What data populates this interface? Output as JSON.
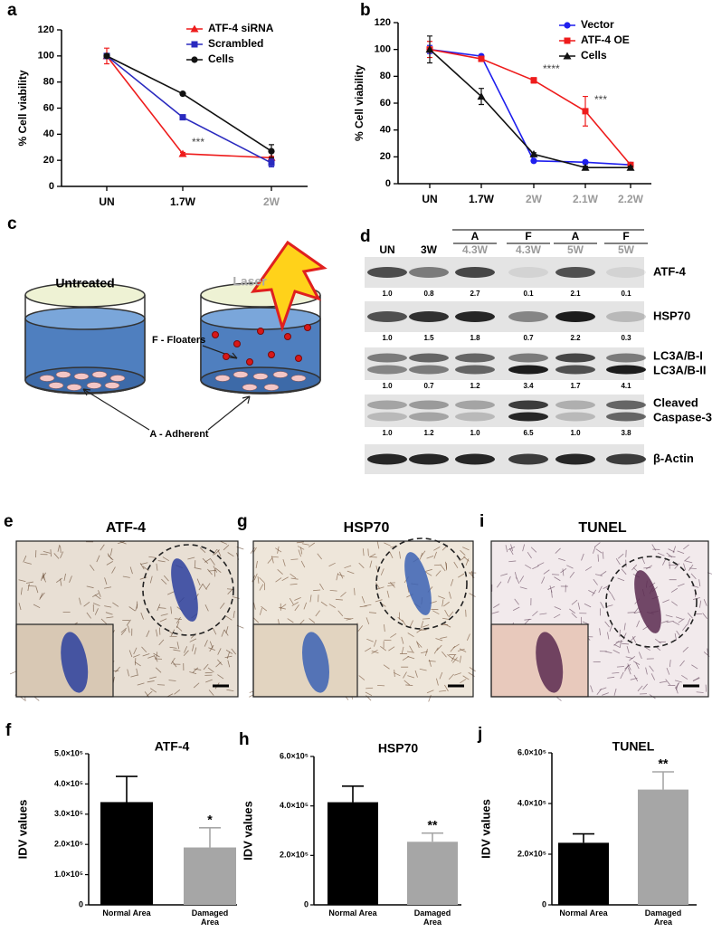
{
  "panel_labels": [
    "a",
    "b",
    "c",
    "d",
    "e",
    "g",
    "i",
    "f",
    "h",
    "j"
  ],
  "chart_data": [
    {
      "type": "line",
      "ylabel": "% Cell viability",
      "categories": [
        "UN",
        "1.7W",
        "2W"
      ],
      "category_colors": [
        "#000000",
        "#000000",
        "#9a9a9a"
      ],
      "ylim": [
        0,
        120
      ],
      "yticks": [
        0,
        20,
        40,
        60,
        80,
        100,
        120
      ],
      "legend": "upper right",
      "series": [
        {
          "name": "ATF-4 siRNA",
          "color": "#ee1c1c",
          "marker": "triangle",
          "values": [
            100,
            25,
            22
          ],
          "errors": [
            6,
            1,
            1
          ],
          "annotations": [
            null,
            "***",
            null
          ]
        },
        {
          "name": "Scrambled",
          "color": "#2a2abf",
          "marker": "square",
          "values": [
            100,
            53,
            18
          ],
          "errors": [
            1,
            1,
            3
          ]
        },
        {
          "name": "Cells",
          "color": "#111111",
          "marker": "circle",
          "values": [
            100,
            71,
            27
          ],
          "errors": [
            1,
            1,
            5
          ]
        }
      ]
    },
    {
      "type": "line",
      "ylabel": "% Cell viability",
      "categories": [
        "UN",
        "1.7W",
        "2W",
        "2.1W",
        "2.2W"
      ],
      "category_colors": [
        "#000000",
        "#000000",
        "#9a9a9a",
        "#9a9a9a",
        "#9a9a9a"
      ],
      "ylim": [
        0,
        120
      ],
      "yticks": [
        0,
        20,
        40,
        60,
        80,
        100,
        120
      ],
      "legend": "upper right",
      "series": [
        {
          "name": "Vector",
          "color": "#1f1fee",
          "marker": "circle",
          "values": [
            100,
            95,
            17,
            16,
            14
          ],
          "errors": [
            3,
            1,
            1,
            1,
            1
          ]
        },
        {
          "name": "ATF-4 OE",
          "color": "#ee1c1c",
          "marker": "square",
          "values": [
            100,
            93,
            77,
            54,
            14
          ],
          "errors": [
            6,
            1,
            2,
            11,
            1
          ],
          "annotations": [
            null,
            null,
            "****",
            "***",
            null
          ]
        },
        {
          "name": "Cells",
          "color": "#111111",
          "marker": "triangle",
          "values": [
            100,
            65,
            22,
            12,
            12
          ],
          "errors": [
            10,
            6,
            1,
            1,
            1
          ]
        }
      ]
    },
    {
      "type": "bar",
      "title": "ATF-4",
      "ylabel": "IDV values",
      "categories": [
        "Normal Area",
        "Damaged Area"
      ],
      "colors": [
        "#000000",
        "#a6a6a6"
      ],
      "values": [
        340000,
        190000
      ],
      "errors": [
        85000,
        65000
      ],
      "value_annotations": [
        null,
        "*"
      ],
      "ylim": [
        0,
        500000
      ],
      "yticks": [
        0,
        {
          "value": 100000,
          "label": "1.0×10⁵"
        },
        {
          "value": 200000,
          "label": "2.0×10⁵"
        },
        {
          "value": 300000,
          "label": "3.0×10⁵"
        },
        {
          "value": 400000,
          "label": "4.0×10⁵"
        },
        {
          "value": 500000,
          "label": "5.0×10⁵"
        }
      ]
    },
    {
      "type": "bar",
      "title": "HSP70",
      "ylabel": "IDV values",
      "categories": [
        "Normal Area",
        "Damaged Area"
      ],
      "colors": [
        "#000000",
        "#a6a6a6"
      ],
      "values": [
        415000,
        255000
      ],
      "errors": [
        65000,
        35000
      ],
      "value_annotations": [
        null,
        "**"
      ],
      "ylim": [
        0,
        600000
      ],
      "yticks": [
        0,
        {
          "value": 200000,
          "label": "2.0×10⁵"
        },
        {
          "value": 400000,
          "label": "4.0×10⁵"
        },
        {
          "value": 600000,
          "label": "6.0×10⁵"
        }
      ]
    },
    {
      "type": "bar",
      "title": "TUNEL",
      "ylabel": "IDV values",
      "categories": [
        "Normal Area",
        "Damaged Area"
      ],
      "colors": [
        "#000000",
        "#a6a6a6"
      ],
      "values": [
        245000,
        455000
      ],
      "errors": [
        35000,
        70000
      ],
      "value_annotations": [
        null,
        "**"
      ],
      "ylim": [
        0,
        600000
      ],
      "yticks": [
        0,
        {
          "value": 200000,
          "label": "2.0×10⁵"
        },
        {
          "value": 400000,
          "label": "4.0×10⁵"
        },
        {
          "value": 600000,
          "label": "6.0×10⁵"
        }
      ]
    }
  ],
  "diagram": {
    "left_title": "Untreated",
    "right_title": "Laser",
    "floaters": "F - Floaters",
    "adherent": "A - Adherent"
  },
  "blot": {
    "lanes": [
      {
        "label": "UN"
      },
      {
        "label": "3W"
      },
      {
        "group": "A",
        "label": "4.3W"
      },
      {
        "group": "F",
        "label": "4.3W"
      },
      {
        "group": "A",
        "label": "5W"
      },
      {
        "group": "F",
        "label": "5W"
      }
    ],
    "rows": [
      {
        "labels": [
          "ATF-4"
        ],
        "quantification": [
          "1.0",
          "0.8",
          "2.7",
          "0.1",
          "2.1",
          "0.1"
        ]
      },
      {
        "labels": [
          "HSP70"
        ],
        "quantification": [
          "1.0",
          "1.5",
          "1.8",
          "0.7",
          "2.2",
          "0.3"
        ]
      },
      {
        "labels": [
          "LC3A/B-I",
          "LC3A/B-II"
        ],
        "quantification": [
          "1.0",
          "0.7",
          "1.2",
          "3.4",
          "1.7",
          "4.1"
        ]
      },
      {
        "labels": [
          "Cleaved",
          "Caspase-3"
        ],
        "quantification": [
          "1.0",
          "1.2",
          "1.0",
          "6.5",
          "1.0",
          "3.8"
        ]
      },
      {
        "labels": [
          "β-Actin"
        ]
      }
    ]
  },
  "histology": [
    {
      "title": "ATF-4"
    },
    {
      "title": "HSP70"
    },
    {
      "title": "TUNEL"
    }
  ]
}
